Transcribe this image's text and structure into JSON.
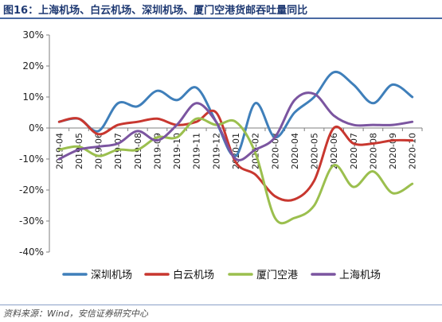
{
  "title": "图16：上海机场、白云机场、深圳机场、厦门空港货邮吞吐量同比",
  "footer": "资料来源：Wind，安信证券研究中心",
  "chart_data": {
    "type": "line",
    "x": [
      "2019-04",
      "2019-05",
      "2019-06",
      "2019-07",
      "2019-08",
      "2019-09",
      "2019-10",
      "2019-11",
      "2019-12",
      "2020-01",
      "2020-02",
      "2020-03",
      "2020-04",
      "2020-05",
      "2020-06",
      "2020-07",
      "2020-08",
      "2020-09",
      "2020-10"
    ],
    "y_ticks": [
      "30%",
      "20%",
      "10%",
      "0%",
      "-10%",
      "-20%",
      "-30%",
      "-40%"
    ],
    "ylim": [
      -40,
      30
    ],
    "grid": false,
    "legend_position": "bottom",
    "series": [
      {
        "name": "深圳机场",
        "color": "#3f7fba",
        "values": [
          2,
          3,
          -1,
          8,
          7,
          12,
          9,
          13,
          2,
          -9,
          8,
          -3,
          5,
          10,
          18,
          14,
          8,
          14,
          10
        ]
      },
      {
        "name": "白云机场",
        "color": "#c8372f",
        "values": [
          2,
          3,
          -2,
          1,
          2,
          3,
          1,
          2,
          5,
          -11,
          -15,
          -22,
          -23,
          -17,
          0,
          -5,
          -5,
          -4,
          -4
        ]
      },
      {
        "name": "厦门空港",
        "color": "#9bbf4e",
        "values": [
          -7,
          -6,
          -9,
          -7,
          -7,
          -3,
          -3,
          3,
          1,
          2,
          -8,
          -29,
          -29,
          -25,
          -12,
          -19,
          -14,
          -21,
          -18
        ]
      },
      {
        "name": "上海机场",
        "color": "#7b55a0",
        "values": [
          -10,
          -7,
          -6,
          -5,
          -1,
          -4,
          1,
          8,
          2,
          -10,
          -7,
          -3,
          9,
          11,
          4,
          1,
          1,
          1,
          2
        ]
      }
    ]
  }
}
